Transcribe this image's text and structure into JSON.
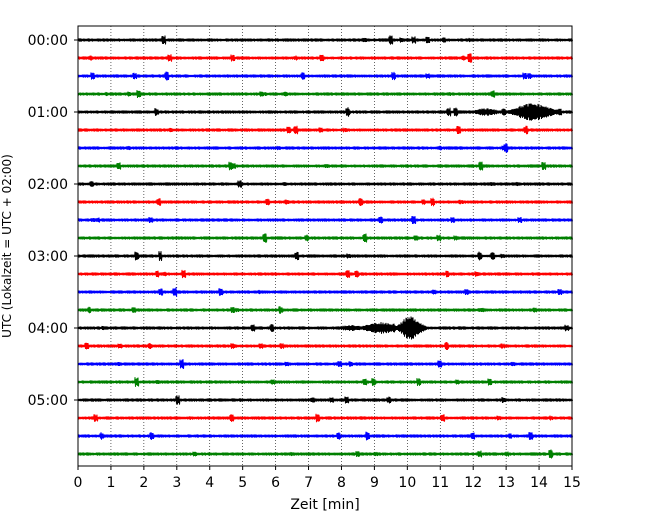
{
  "chart_data": {
    "type": "line",
    "title": "",
    "xlabel": "Zeit  [min]",
    "ylabel": "UTC (Lokalzeit = UTC + 02:00)",
    "xlim": [
      0,
      15
    ],
    "x_ticks": [
      0,
      1,
      2,
      3,
      4,
      5,
      6,
      7,
      8,
      9,
      10,
      11,
      12,
      13,
      14,
      15
    ],
    "x_tick_labels": [
      "0",
      "1",
      "2",
      "3",
      "4",
      "5",
      "6",
      "7",
      "8",
      "9",
      "10",
      "11",
      "12",
      "13",
      "14",
      "15"
    ],
    "y_tick_labels": [
      "00:00",
      "01:00",
      "02:00",
      "03:00",
      "04:00",
      "05:00"
    ],
    "y_tick_rows": [
      0,
      4,
      8,
      12,
      16,
      20
    ],
    "vertical_grid": "dotted",
    "trace_colors": [
      "#000000",
      "#ff0000",
      "#0000ff",
      "#008000"
    ],
    "trace_count": 24,
    "minutes_per_trace": 15,
    "events": [
      {
        "row": 4,
        "center_min": 13.8,
        "width_min": 1.6,
        "amplitude": 9
      },
      {
        "row": 4,
        "center_min": 12.4,
        "width_min": 1.0,
        "amplitude": 4
      },
      {
        "row": 16,
        "center_min": 10.1,
        "width_min": 0.9,
        "amplitude": 12
      },
      {
        "row": 16,
        "center_min": 9.2,
        "width_min": 1.4,
        "amplitude": 6
      },
      {
        "row": 16,
        "center_min": 8.3,
        "width_min": 1.2,
        "amplitude": 3
      }
    ]
  }
}
